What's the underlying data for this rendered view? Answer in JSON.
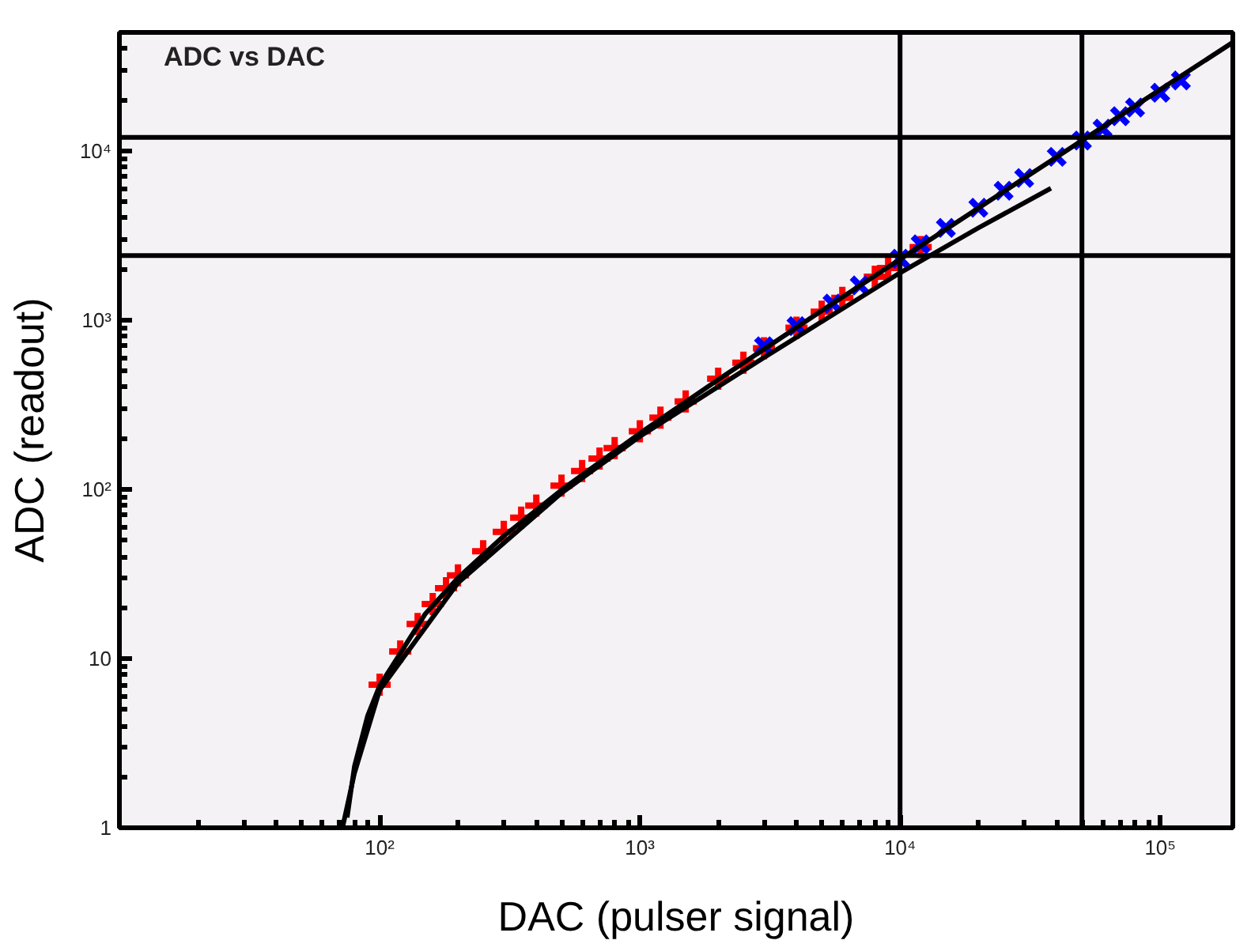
{
  "chart_data": {
    "type": "scatter",
    "title": "ADC vs DAC",
    "xlabel": "DAC (pulser signal)",
    "ylabel": "ADC (readout)",
    "log": "xy",
    "grid": false,
    "xlim": [
      10,
      190000
    ],
    "ylim": [
      1,
      50000
    ],
    "xticks": [
      {
        "value": 100,
        "label": "10²"
      },
      {
        "value": 1000,
        "label": "10³"
      },
      {
        "value": 10000,
        "label": "10⁴"
      },
      {
        "value": 100000,
        "label": "10⁵"
      }
    ],
    "yticks": [
      1,
      10,
      {
        "value": 100,
        "label": "10²"
      },
      {
        "value": 1000,
        "label": "10³"
      },
      {
        "value": 10000,
        "label": "10⁴"
      }
    ],
    "ref_lines": [
      {
        "axis": "x",
        "value": 10000,
        "color": "#000000"
      },
      {
        "axis": "x",
        "value": 50000,
        "color": "#000000"
      },
      {
        "axis": "y",
        "value": 2400,
        "color": "#000000"
      },
      {
        "axis": "y",
        "value": 12000,
        "color": "#000000"
      }
    ],
    "series": [
      {
        "type": "scatter",
        "marker": "cross",
        "color": "#ff0000",
        "x": [
          100,
          120,
          140,
          160,
          180,
          200,
          250,
          300,
          350,
          400,
          500,
          600,
          700,
          800,
          1000,
          1200,
          1500,
          2000,
          2500,
          3000,
          4000,
          5000,
          6000,
          8000,
          9000,
          12000
        ],
        "values": [
          7,
          11,
          16,
          21,
          26,
          31,
          43,
          56,
          68,
          80,
          105,
          128,
          152,
          175,
          220,
          265,
          330,
          450,
          560,
          680,
          900,
          1120,
          1350,
          1800,
          2030,
          2700
        ]
      },
      {
        "type": "scatter",
        "marker": "x",
        "color": "#0000ff",
        "x": [
          3000,
          4000,
          5500,
          7000,
          10000,
          12000,
          15000,
          20000,
          25000,
          30000,
          40000,
          50000,
          60000,
          70000,
          80000,
          100000,
          120000
        ],
        "values": [
          700,
          920,
          1250,
          1600,
          2300,
          2800,
          3500,
          4600,
          5800,
          6900,
          9200,
          11500,
          13500,
          16000,
          18000,
          22000,
          26000
        ]
      },
      {
        "type": "line",
        "color": "#000000",
        "x": [
          75,
          80,
          90,
          100,
          150,
          200,
          300,
          500,
          1000,
          2000,
          5000,
          10000,
          20000,
          50000,
          100000,
          190000
        ],
        "values": [
          1.15,
          2.3,
          4.6,
          6.9,
          18.4,
          29.9,
          52.9,
          99,
          214,
          444,
          1134,
          2284,
          4584,
          11484,
          22984,
          43684
        ]
      },
      {
        "type": "line",
        "color": "#000000",
        "x": [
          72,
          80,
          100,
          200,
          500,
          1000,
          3000,
          10000,
          20000,
          38000
        ],
        "values": [
          1,
          2.1,
          6.5,
          28,
          95,
          205,
          600,
          1900,
          3500,
          6000
        ]
      }
    ]
  }
}
